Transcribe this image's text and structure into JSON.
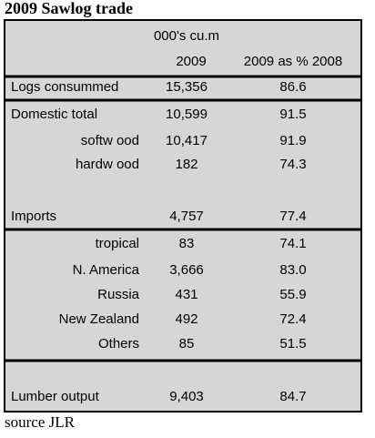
{
  "title": "2009 Sawlog trade",
  "table": {
    "unit": "000's cu.m",
    "columns": [
      "2009",
      "2009 as % 2008"
    ],
    "sections": [
      {
        "total": [
          "Logs consummed",
          "15,356",
          "86.6"
        ]
      },
      {
        "total": [
          "Domestic total",
          "10,599",
          "91.5"
        ],
        "items": [
          [
            "softw ood",
            "10,417",
            "91.9"
          ],
          [
            "hardw ood",
            "182",
            "74.3"
          ]
        ]
      },
      {
        "total": [
          "Imports",
          "4,757",
          "77.4"
        ],
        "items": [
          [
            "tropical",
            "83",
            "74.1"
          ],
          [
            "N. America",
            "3,666",
            "83.0"
          ],
          [
            "Russia",
            "431",
            "55.9"
          ],
          [
            "New Zealand",
            "492",
            "72.4"
          ],
          [
            "Others",
            "85",
            "51.5"
          ]
        ]
      },
      {
        "total": [
          "Lumber output",
          "9,403",
          "84.7"
        ]
      }
    ]
  },
  "source": "source JLR"
}
